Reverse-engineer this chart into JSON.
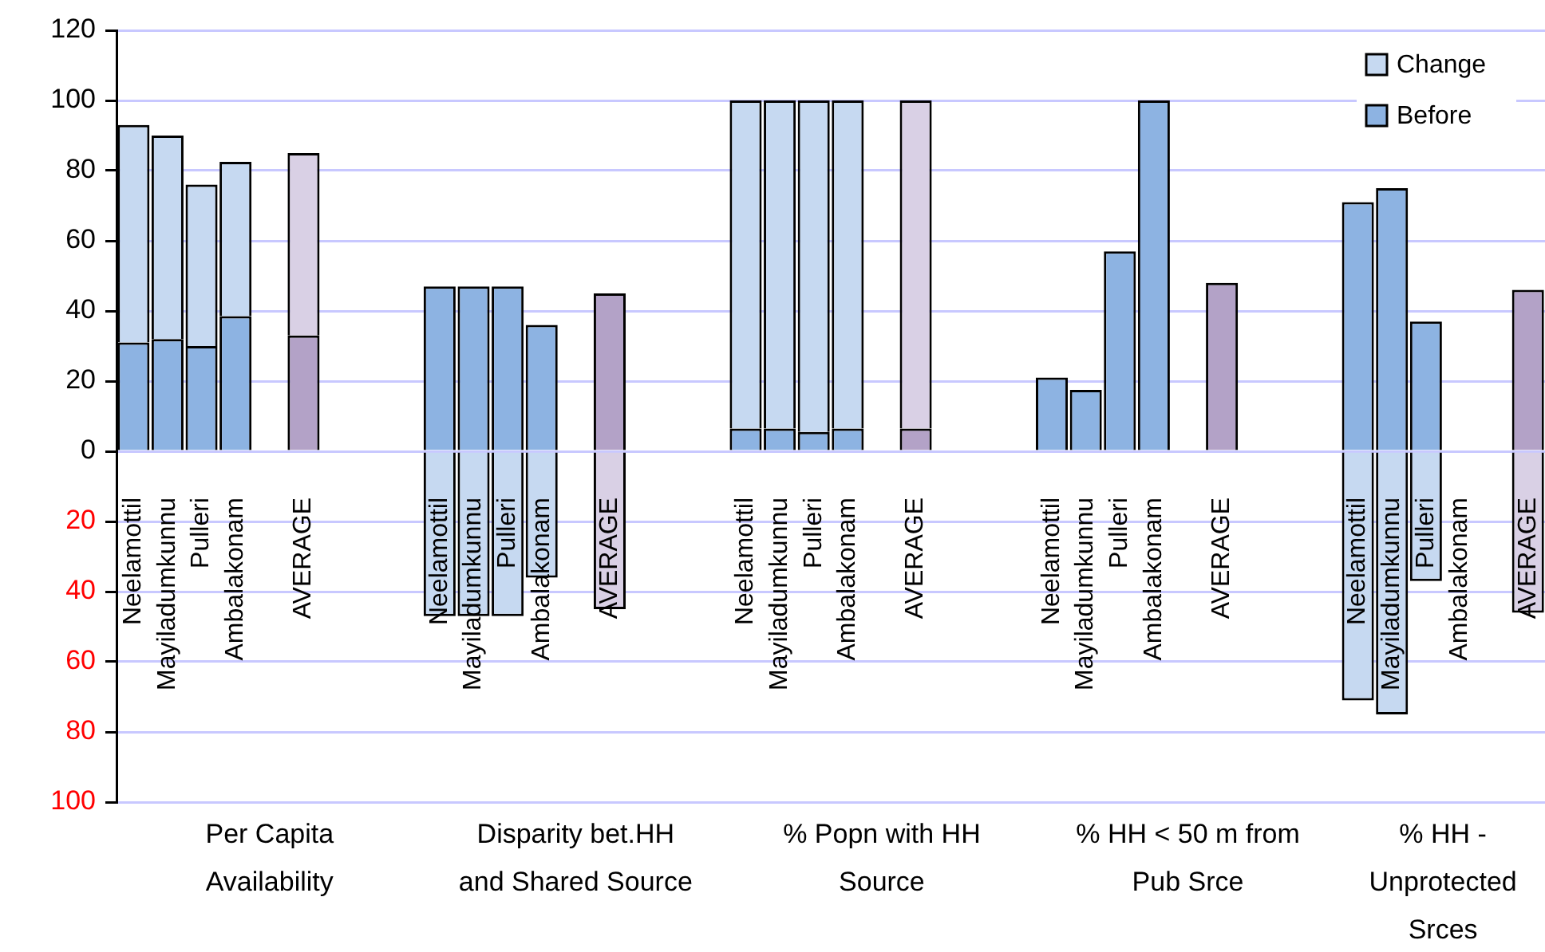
{
  "chart_data": {
    "type": "bar",
    "stacked": true,
    "categories": [
      "Neelamottil",
      "Mayiladumkunnu",
      "Pulleri",
      "Ambalakonam",
      null,
      "AVERAGE",
      null,
      null,
      null,
      "Neelamottil",
      "Mayiladumkunnu",
      "Pulleri",
      "Ambalakonam",
      null,
      "AVERAGE",
      null,
      null,
      null,
      "Neelamottil",
      "Mayiladumkunnu",
      "Pulleri",
      "Ambalakonam",
      null,
      "AVERAGE",
      null,
      null,
      null,
      "Neelamottil",
      "Mayiladumkunnu",
      "Pulleri",
      "Ambalakonam",
      null,
      "AVERAGE",
      null,
      null,
      null,
      "Neelamottil",
      "Mayiladumkunnu",
      "Pulleri",
      "Ambalakonam",
      null,
      "AVERAGE"
    ],
    "series": [
      {
        "name": "Before",
        "color": "#8db3e2",
        "colors": [
          "#8db3e2",
          "#8db3e2",
          "#8db3e2",
          "#8db3e2",
          "#8db3e2",
          "#b3a2c7",
          "#8db3e2",
          "#8db3e2",
          "#8db3e2",
          "#8db3e2",
          "#8db3e2",
          "#8db3e2",
          "#8db3e2",
          "#8db3e2",
          "#b3a2c7",
          "#8db3e2",
          "#8db3e2",
          "#8db3e2",
          "#8db3e2",
          "#8db3e2",
          "#8db3e2",
          "#8db3e2",
          "#8db3e2",
          "#b3a2c7",
          "#8db3e2",
          "#8db3e2",
          "#8db3e2",
          "#8db3e2",
          "#8db3e2",
          "#8db3e2",
          "#8db3e2",
          "#8db3e2",
          "#b3a2c7",
          "#8db3e2",
          "#8db3e2",
          "#8db3e2",
          "#8db3e2",
          "#8db3e2",
          "#8db3e2",
          "#8db3e2",
          "#8db3e2",
          "#b3a2c7"
        ],
        "values": [
          31,
          32,
          30,
          38.5,
          null,
          33,
          null,
          null,
          null,
          47,
          47,
          47,
          36,
          null,
          45,
          null,
          null,
          null,
          6.5,
          6.5,
          5.5,
          6.5,
          null,
          6.5,
          null,
          null,
          null,
          21,
          17.5,
          57,
          100,
          null,
          48,
          null,
          null,
          null,
          71,
          75,
          37,
          null,
          null,
          46
        ]
      },
      {
        "name": "Change",
        "color": "#c6d9f1",
        "colors": [
          "#c6d9f1",
          "#c6d9f1",
          "#c6d9f1",
          "#c6d9f1",
          "#c6d9f1",
          "#d9d0e5",
          "#c6d9f1",
          "#c6d9f1",
          "#c6d9f1",
          "#c6d9f1",
          "#c6d9f1",
          "#c6d9f1",
          "#c6d9f1",
          "#c6d9f1",
          "#d9d0e5",
          "#c6d9f1",
          "#c6d9f1",
          "#c6d9f1",
          "#c6d9f1",
          "#c6d9f1",
          "#c6d9f1",
          "#c6d9f1",
          "#c6d9f1",
          "#d9d0e5",
          "#c6d9f1",
          "#c6d9f1",
          "#c6d9f1",
          "#c6d9f1",
          "#c6d9f1",
          "#c6d9f1",
          "#c6d9f1",
          "#c6d9f1",
          "#d9d0e5",
          "#c6d9f1",
          "#c6d9f1",
          "#c6d9f1",
          "#c6d9f1",
          "#c6d9f1",
          "#c6d9f1",
          "#c6d9f1",
          "#c6d9f1",
          "#d9d0e5"
        ],
        "values": [
          62,
          58,
          46,
          44,
          null,
          52,
          null,
          null,
          null,
          -47,
          -47,
          -47,
          -36,
          null,
          -45,
          null,
          null,
          null,
          93.5,
          93.5,
          94.5,
          93.5,
          null,
          93.5,
          null,
          null,
          null,
          null,
          null,
          null,
          null,
          null,
          null,
          null,
          null,
          null,
          -71,
          -75,
          -37,
          null,
          null,
          -46
        ]
      }
    ],
    "ylim": [
      -100,
      120
    ],
    "yticks": [
      {
        "value": -100,
        "label": "100"
      },
      {
        "value": -80,
        "label": "80"
      },
      {
        "value": -60,
        "label": "60"
      },
      {
        "value": -40,
        "label": "40"
      },
      {
        "value": -20,
        "label": "20"
      },
      0,
      20,
      40,
      60,
      80,
      100,
      120
    ],
    "grid": "y",
    "legend": "top right",
    "annotations": [
      "Per Capita Availability",
      "Disparity bet.HH and Shared Source",
      "% Popn with HH Source",
      "% HH < 50 m from Pub Srce",
      "% HH - Unprotected Srces"
    ]
  }
}
